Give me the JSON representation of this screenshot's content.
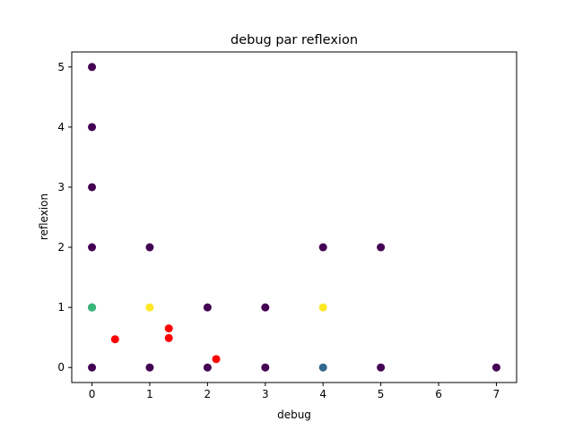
{
  "chart_data": {
    "type": "scatter",
    "title": "debug par reflexion",
    "xlabel": "debug",
    "ylabel": "reflexion",
    "xlim": [
      -0.35,
      7.35
    ],
    "ylim": [
      -0.25,
      5.25
    ],
    "xticks": [
      0,
      1,
      2,
      3,
      4,
      5,
      6,
      7
    ],
    "yticks": [
      0,
      1,
      2,
      3,
      4,
      5
    ],
    "grid": false,
    "points": [
      {
        "x": 0,
        "y": 5,
        "color": "#440154"
      },
      {
        "x": 0,
        "y": 4,
        "color": "#440154"
      },
      {
        "x": 0,
        "y": 3,
        "color": "#440154"
      },
      {
        "x": 0,
        "y": 2,
        "color": "#440154"
      },
      {
        "x": 0,
        "y": 1,
        "color": "#440154"
      },
      {
        "x": 0,
        "y": 0,
        "color": "#440154"
      },
      {
        "x": 1,
        "y": 2,
        "color": "#440154"
      },
      {
        "x": 1,
        "y": 0,
        "color": "#440154"
      },
      {
        "x": 2,
        "y": 1,
        "color": "#440154"
      },
      {
        "x": 2,
        "y": 0,
        "color": "#440154"
      },
      {
        "x": 3,
        "y": 1,
        "color": "#440154"
      },
      {
        "x": 3,
        "y": 0,
        "color": "#440154"
      },
      {
        "x": 4,
        "y": 2,
        "color": "#440154"
      },
      {
        "x": 5,
        "y": 2,
        "color": "#440154"
      },
      {
        "x": 5,
        "y": 0,
        "color": "#440154"
      },
      {
        "x": 7,
        "y": 0,
        "color": "#440154"
      },
      {
        "x": 4,
        "y": 0,
        "color": "#31688e"
      },
      {
        "x": 0,
        "y": 1,
        "color": "#35b779"
      },
      {
        "x": 1,
        "y": 1,
        "color": "#fde725"
      },
      {
        "x": 4,
        "y": 1,
        "color": "#fde725"
      },
      {
        "x": 0.4,
        "y": 0.47,
        "color": "#ff0000"
      },
      {
        "x": 1.33,
        "y": 0.65,
        "color": "#ff0000"
      },
      {
        "x": 1.33,
        "y": 0.49,
        "color": "#ff0000"
      },
      {
        "x": 2.15,
        "y": 0.14,
        "color": "#ff0000"
      }
    ]
  }
}
